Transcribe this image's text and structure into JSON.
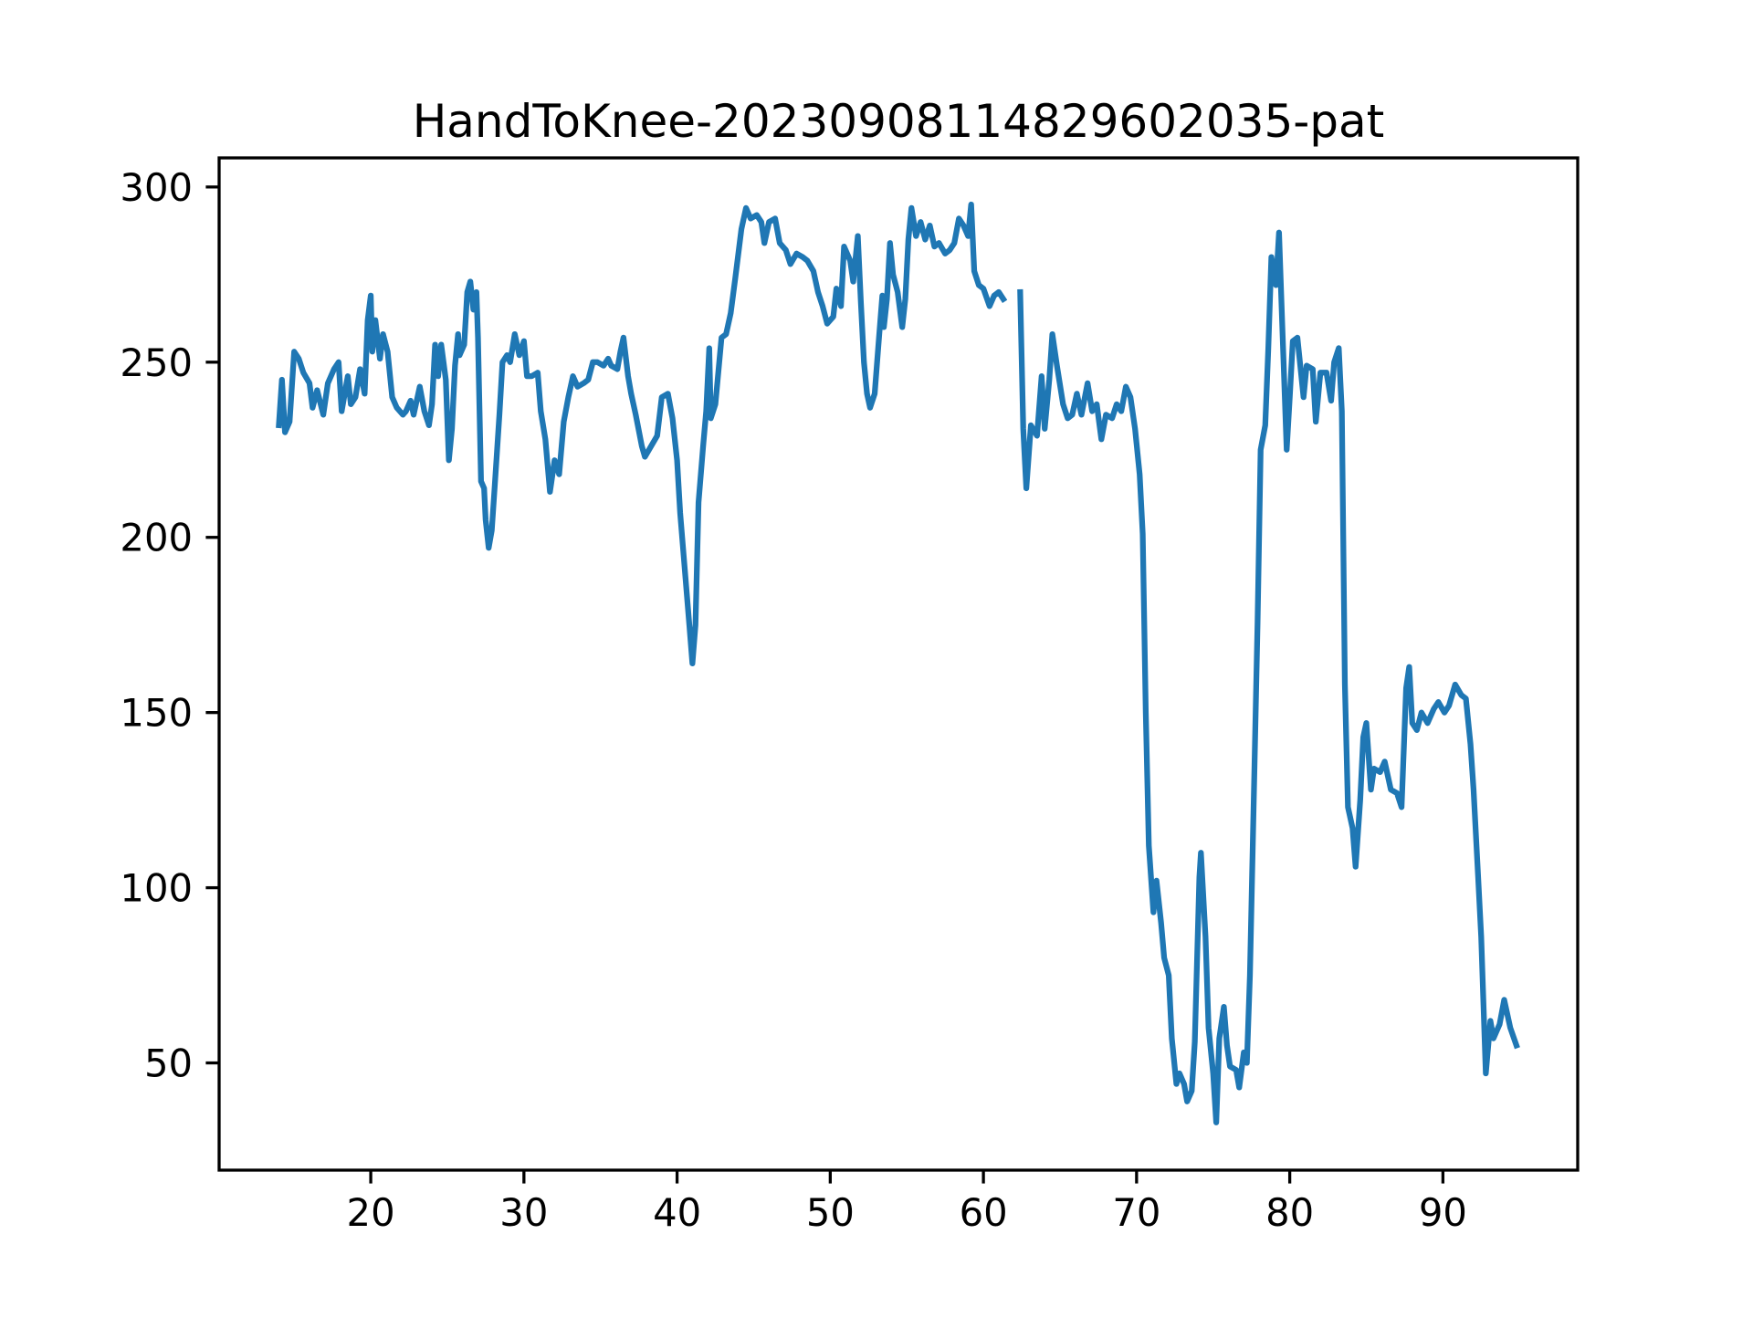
{
  "chart_data": {
    "type": "line",
    "title": "HandToKnee-20230908114829602035-pat",
    "color": "#1f77b4",
    "grid": false,
    "xlim": [
      10.1,
      98.8
    ],
    "ylim": [
      19.4,
      308.3
    ],
    "xticks": [
      20,
      30,
      40,
      50,
      60,
      70,
      80,
      90
    ],
    "yticks": [
      50,
      100,
      150,
      200,
      250,
      300
    ],
    "x": [
      14.0,
      14.2,
      14.4,
      14.7,
      15.0,
      15.3,
      15.6,
      16.0,
      16.2,
      16.5,
      16.9,
      17.2,
      17.6,
      17.9,
      18.1,
      18.5,
      18.7,
      19.0,
      19.3,
      19.6,
      19.8,
      20.0,
      20.1,
      20.3,
      20.6,
      20.8,
      21.1,
      21.4,
      21.7,
      22.1,
      22.3,
      22.6,
      22.8,
      23.2,
      23.5,
      23.8,
      24.0,
      24.2,
      24.4,
      24.6,
      24.9,
      25.1,
      25.3,
      25.5,
      25.7,
      25.8,
      26.1,
      26.3,
      26.5,
      26.7,
      26.9,
      27.0,
      27.2,
      27.4,
      27.5,
      27.7,
      27.9,
      28.1,
      28.4,
      28.6,
      28.9,
      29.1,
      29.4,
      29.7,
      30.0,
      30.2,
      30.5,
      30.9,
      31.1,
      31.4,
      31.7,
      32.0,
      32.3,
      32.6,
      32.9,
      33.2,
      33.5,
      33.9,
      34.2,
      34.5,
      34.8,
      35.2,
      35.5,
      35.7,
      36.1,
      36.3,
      36.5,
      36.8,
      37.0,
      37.3,
      37.7,
      37.9,
      38.3,
      38.7,
      39.0,
      39.4,
      39.7,
      40.0,
      40.2,
      40.5,
      40.8,
      41.0,
      41.2,
      41.4,
      41.7,
      41.9,
      42.1,
      42.2,
      42.5,
      42.9,
      43.2,
      43.5,
      43.8,
      44.2,
      44.5,
      44.8,
      45.2,
      45.5,
      45.7,
      46.0,
      46.4,
      46.7,
      47.1,
      47.4,
      47.8,
      48.2,
      48.5,
      48.9,
      49.2,
      49.5,
      49.8,
      50.2,
      50.4,
      50.7,
      50.9,
      51.3,
      51.5,
      51.8,
      52.0,
      52.2,
      52.4,
      52.6,
      52.9,
      53.2,
      53.4,
      53.5,
      53.7,
      53.9,
      54.1,
      54.4,
      54.7,
      54.9,
      55.1,
      55.3,
      55.6,
      55.9,
      56.2,
      56.5,
      56.8,
      57.1,
      57.5,
      57.8,
      58.1,
      58.4,
      58.7,
      59.0,
      59.2,
      59.4,
      59.7,
      60.0,
      60.4,
      60.7,
      61.0,
      61.3,
      61.8,
      62.4,
      62.6,
      62.8,
      63.1,
      63.5,
      63.8,
      64.0,
      64.3,
      64.5,
      64.8,
      65.2,
      65.5,
      65.8,
      66.1,
      66.4,
      66.8,
      67.1,
      67.4,
      67.7,
      68.0,
      68.4,
      68.7,
      69.0,
      69.3,
      69.6,
      69.9,
      70.2,
      70.4,
      70.6,
      70.8,
      71.1,
      71.3,
      71.6,
      71.8,
      72.1,
      72.3,
      72.6,
      72.8,
      73.1,
      73.3,
      73.6,
      73.8,
      74.1,
      74.2,
      74.5,
      74.7,
      75.0,
      75.2,
      75.4,
      75.7,
      75.9,
      76.1,
      76.5,
      76.7,
      77.0,
      77.2,
      77.4,
      77.7,
      77.9,
      78.1,
      78.4,
      78.6,
      78.8,
      79.1,
      79.3,
      79.5,
      79.8,
      80.0,
      80.2,
      80.5,
      80.9,
      81.1,
      81.5,
      81.7,
      82.0,
      82.4,
      82.7,
      82.9,
      83.2,
      83.4,
      83.6,
      83.8,
      84.1,
      84.3,
      84.6,
      84.8,
      85.0,
      85.3,
      85.5,
      85.9,
      86.2,
      86.6,
      87.0,
      87.3,
      87.6,
      87.8,
      88.0,
      88.3,
      88.6,
      89.0,
      89.4,
      89.7,
      90.1,
      90.4,
      90.8,
      91.2,
      91.5,
      91.8,
      92.0,
      92.3,
      92.5,
      92.8,
      93.1,
      93.3,
      93.7,
      94.0,
      94.4,
      94.8
    ],
    "values": [
      232,
      245,
      230,
      233,
      253,
      251,
      247,
      244,
      237,
      242,
      235,
      244,
      248,
      250,
      236,
      246,
      238,
      240,
      248,
      241,
      262,
      269,
      253,
      262,
      251,
      258,
      253,
      240,
      237,
      235,
      236,
      239,
      235,
      243,
      236,
      232,
      238,
      255,
      246,
      255,
      245,
      222,
      231,
      249,
      258,
      252,
      255,
      270,
      273,
      265,
      270,
      257,
      216,
      214,
      205,
      197,
      202,
      215,
      235,
      250,
      252,
      250,
      258,
      252,
      256,
      246,
      246,
      247,
      236,
      228,
      213,
      222,
      218,
      233,
      240,
      246,
      243,
      244,
      245,
      250,
      250,
      249,
      251,
      249,
      248,
      253,
      257,
      246,
      241,
      235,
      226,
      223,
      226,
      229,
      240,
      241,
      234,
      222,
      207,
      191,
      175,
      164,
      175,
      210,
      226,
      236,
      254,
      234,
      238,
      257,
      258,
      264,
      274,
      288,
      294,
      291,
      292,
      290,
      284,
      290,
      291,
      284,
      282,
      278,
      281,
      280,
      279,
      276,
      270,
      266,
      261,
      263,
      271,
      266,
      283,
      279,
      273,
      286,
      267,
      250,
      241,
      237,
      241,
      258,
      269,
      260,
      268,
      284,
      275,
      270,
      260,
      268,
      285,
      294,
      286,
      290,
      285,
      289,
      283,
      284,
      281,
      282,
      284,
      291,
      289,
      286,
      295,
      276,
      272,
      271,
      266,
      269,
      270,
      268,
      null,
      270,
      231,
      214,
      232,
      229,
      246,
      231,
      245,
      258,
      249,
      238,
      234,
      235,
      241,
      235,
      244,
      236,
      238,
      228,
      235,
      234,
      238,
      236,
      243,
      240,
      231,
      218,
      201,
      150,
      112,
      93,
      102,
      90,
      80,
      75,
      57,
      44,
      47,
      44,
      39,
      42,
      56,
      103,
      110,
      86,
      60,
      47,
      33,
      57,
      66,
      55,
      49,
      48,
      43,
      53,
      50,
      75,
      135,
      176,
      225,
      232,
      254,
      280,
      272,
      287,
      262,
      225,
      240,
      256,
      257,
      240,
      249,
      248,
      233,
      247,
      247,
      239,
      250,
      254,
      236,
      158,
      123,
      117,
      106,
      125,
      143,
      147,
      128,
      134,
      133,
      136,
      128,
      127,
      123,
      157,
      163,
      147,
      145,
      150,
      147,
      151,
      153,
      150,
      152,
      158,
      155,
      154,
      141,
      128,
      103,
      86,
      47,
      62,
      57,
      61,
      68,
      60,
      55
    ]
  }
}
